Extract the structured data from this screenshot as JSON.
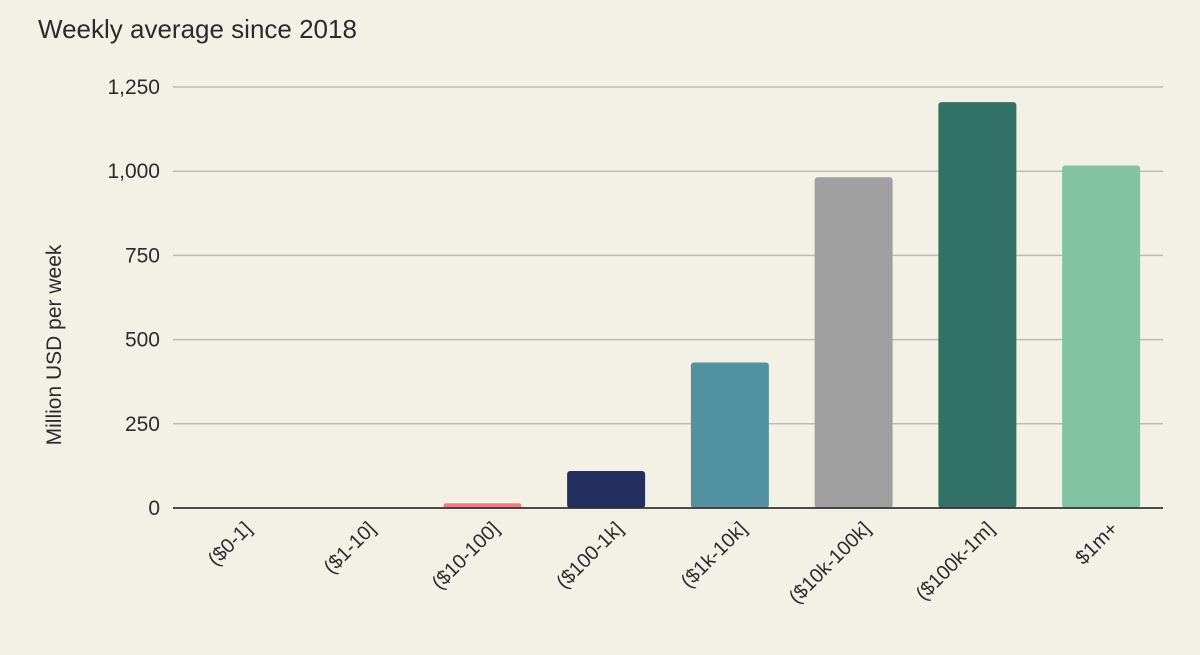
{
  "chart_data": {
    "type": "bar",
    "title": "Weekly average since 2018",
    "xlabel": "",
    "ylabel": "Million USD per week",
    "categories": [
      "($0-1]",
      "($1-10]",
      "($10-100]",
      "($100-1k]",
      "($1k-10k]",
      "($10k-100k]",
      "($100k-1m]",
      "$1m+"
    ],
    "values": [
      0.1,
      0.8,
      14,
      110,
      432,
      982,
      1205,
      1017
    ],
    "colors": [
      "#f08080",
      "#f08080",
      "#f08080",
      "#232f5e",
      "#5291a0",
      "#a0a0a0",
      "#327266",
      "#82c3a3"
    ],
    "ylim": [
      0,
      1250
    ],
    "yticks": [
      0,
      250,
      500,
      750,
      1000,
      1250
    ],
    "ytick_labels": [
      "0",
      "250",
      "500",
      "750",
      "1,000",
      "1,250"
    ],
    "grid": true,
    "legend": "none"
  }
}
